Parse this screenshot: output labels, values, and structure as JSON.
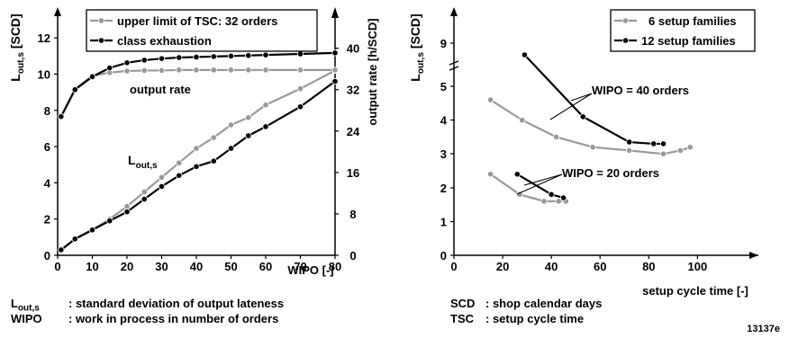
{
  "figure_id": "13137e",
  "colors": {
    "gray": "#999999",
    "black": "#000000"
  },
  "footnotes_left": [
    {
      "symbol": "L",
      "sub": "out,s",
      "text": ": standard deviation of output lateness"
    },
    {
      "symbol": "WIPO",
      "sub": "",
      "text": ": work in process in number of orders"
    }
  ],
  "footnotes_right": [
    {
      "symbol": "SCD",
      "text": ": shop calendar days"
    },
    {
      "symbol": "TSC",
      "text": ": setup cycle time"
    }
  ],
  "chart_data": [
    {
      "type": "line",
      "title": "",
      "xlabel": "WIPO [-]",
      "ylabel": {
        "main": "L",
        "sub": "out,s",
        "unit": " [SCD]"
      },
      "y2label": "output rate [h/SCD]",
      "xlim": [
        0,
        80
      ],
      "ylim": [
        0,
        13
      ],
      "y2lim": [
        0,
        45.5
      ],
      "xticks": [
        0,
        10,
        20,
        30,
        40,
        50,
        60,
        70,
        80
      ],
      "yticks": [
        0,
        2,
        4,
        6,
        8,
        10,
        12
      ],
      "y2ticks": [
        0,
        8,
        16,
        24,
        32,
        40
      ],
      "legend": [
        "upper limit of TSC: 32 orders",
        "class exhaustion"
      ],
      "legend_position": "top",
      "annotations": [
        {
          "text": "output rate",
          "sub": ""
        },
        {
          "text": "L",
          "sub": "out,s"
        }
      ],
      "series": [
        {
          "name": "upper limit of TSC: 32 orders",
          "color": "gray",
          "axis": "right",
          "x": [
            1,
            5,
            10,
            15,
            20,
            25,
            30,
            35,
            40,
            45,
            50,
            55,
            60,
            70,
            80
          ],
          "y": [
            26.8,
            32.1,
            34.7,
            35.3,
            35.6,
            35.7,
            35.7,
            35.8,
            35.8,
            35.8,
            35.8,
            35.8,
            35.8,
            35.8,
            35.8
          ]
        },
        {
          "name": "class exhaustion",
          "color": "black",
          "axis": "right",
          "x": [
            1,
            5,
            10,
            15,
            20,
            25,
            30,
            35,
            40,
            45,
            50,
            55,
            60,
            70,
            80
          ],
          "y": [
            26.8,
            32.0,
            34.5,
            36.2,
            37.2,
            37.7,
            38.0,
            38.2,
            38.3,
            38.4,
            38.5,
            38.6,
            38.7,
            38.9,
            39.1
          ]
        },
        {
          "name": "upper limit of TSC: 32 orders",
          "color": "gray",
          "axis": "left",
          "x": [
            1,
            5,
            10,
            15,
            20,
            25,
            30,
            35,
            40,
            45,
            50,
            55,
            60,
            70,
            80
          ],
          "y": [
            0.3,
            0.9,
            1.4,
            2.0,
            2.7,
            3.5,
            4.3,
            5.1,
            5.9,
            6.5,
            7.2,
            7.6,
            8.3,
            9.2,
            10.2
          ]
        },
        {
          "name": "class exhaustion",
          "color": "black",
          "axis": "left",
          "x": [
            1,
            5,
            10,
            15,
            20,
            25,
            30,
            35,
            40,
            45,
            50,
            55,
            60,
            70,
            80
          ],
          "y": [
            0.3,
            0.9,
            1.4,
            1.9,
            2.4,
            3.1,
            3.8,
            4.4,
            4.9,
            5.2,
            5.9,
            6.6,
            7.1,
            8.2,
            9.6
          ]
        }
      ]
    },
    {
      "type": "line",
      "title": "",
      "xlabel": "setup cycle time [-]",
      "ylabel": {
        "main": "L",
        "sub": "out,s",
        "unit": " [SCD]"
      },
      "xlim": [
        0,
        125
      ],
      "ylim": [
        0,
        10
      ],
      "xticks": [
        0,
        20,
        40,
        60,
        80,
        100
      ],
      "yticks": [
        0,
        1,
        2,
        3,
        4,
        5,
        9
      ],
      "y_axis_break": true,
      "legend": [
        "6 setup families",
        "12 setup families"
      ],
      "legend_position": "top-right",
      "annotations": [
        {
          "text": "WIPO = 40 orders"
        },
        {
          "text": "WIPO = 20 orders"
        }
      ],
      "series": [
        {
          "name": "6 setup families",
          "group": "WIPO = 40 orders",
          "color": "gray",
          "x": [
            15,
            28,
            42,
            57,
            72,
            86,
            93,
            97
          ],
          "y": [
            4.6,
            4.0,
            3.5,
            3.2,
            3.1,
            3.0,
            3.1,
            3.2
          ]
        },
        {
          "name": "12 setup families",
          "group": "WIPO = 40 orders",
          "color": "black",
          "x": [
            29,
            53,
            72,
            82,
            86
          ],
          "y": [
            6.0,
            4.1,
            3.35,
            3.3,
            3.3
          ]
        },
        {
          "name": "6 setup families",
          "group": "WIPO = 20 orders",
          "color": "gray",
          "x": [
            15,
            27,
            37,
            43,
            46
          ],
          "y": [
            2.4,
            1.8,
            1.6,
            1.6,
            1.6
          ]
        },
        {
          "name": "12 setup families",
          "group": "WIPO = 20 orders",
          "color": "black",
          "x": [
            26,
            40,
            45
          ],
          "y": [
            2.4,
            1.8,
            1.7
          ]
        }
      ]
    }
  ]
}
